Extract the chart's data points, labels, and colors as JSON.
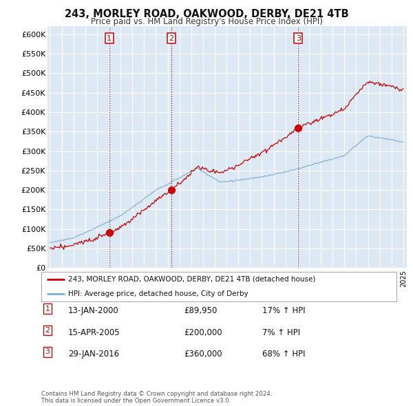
{
  "title": "243, MORLEY ROAD, OAKWOOD, DERBY, DE21 4TB",
  "subtitle": "Price paid vs. HM Land Registry's House Price Index (HPI)",
  "ylim": [
    0,
    620000
  ],
  "yticks": [
    0,
    50000,
    100000,
    150000,
    200000,
    250000,
    300000,
    350000,
    400000,
    450000,
    500000,
    550000,
    600000
  ],
  "background_color": "#ffffff",
  "plot_bg_color": "#dde8f5",
  "grid_color": "#ffffff",
  "sale_color": "#cc0000",
  "hpi_color": "#7aadd4",
  "sale_dates": [
    2000.04,
    2005.29,
    2016.08
  ],
  "sale_prices": [
    89950,
    200000,
    360000
  ],
  "legend_sale": "243, MORLEY ROAD, OAKWOOD, DERBY, DE21 4TB (detached house)",
  "legend_hpi": "HPI: Average price, detached house, City of Derby",
  "table_rows": [
    {
      "num": "1",
      "date": "13-JAN-2000",
      "price": "£89,950",
      "hpi": "17% ↑ HPI"
    },
    {
      "num": "2",
      "date": "15-APR-2005",
      "price": "£200,000",
      "hpi": "7% ↑ HPI"
    },
    {
      "num": "3",
      "date": "29-JAN-2016",
      "price": "£360,000",
      "hpi": "68% ↑ HPI"
    }
  ],
  "footnote": "Contains HM Land Registry data © Crown copyright and database right 2024.\nThis data is licensed under the Open Government Licence v3.0.",
  "xstart": 1994.8,
  "xend": 2025.3,
  "vline_dates": [
    2000.04,
    2005.29,
    2016.08
  ]
}
